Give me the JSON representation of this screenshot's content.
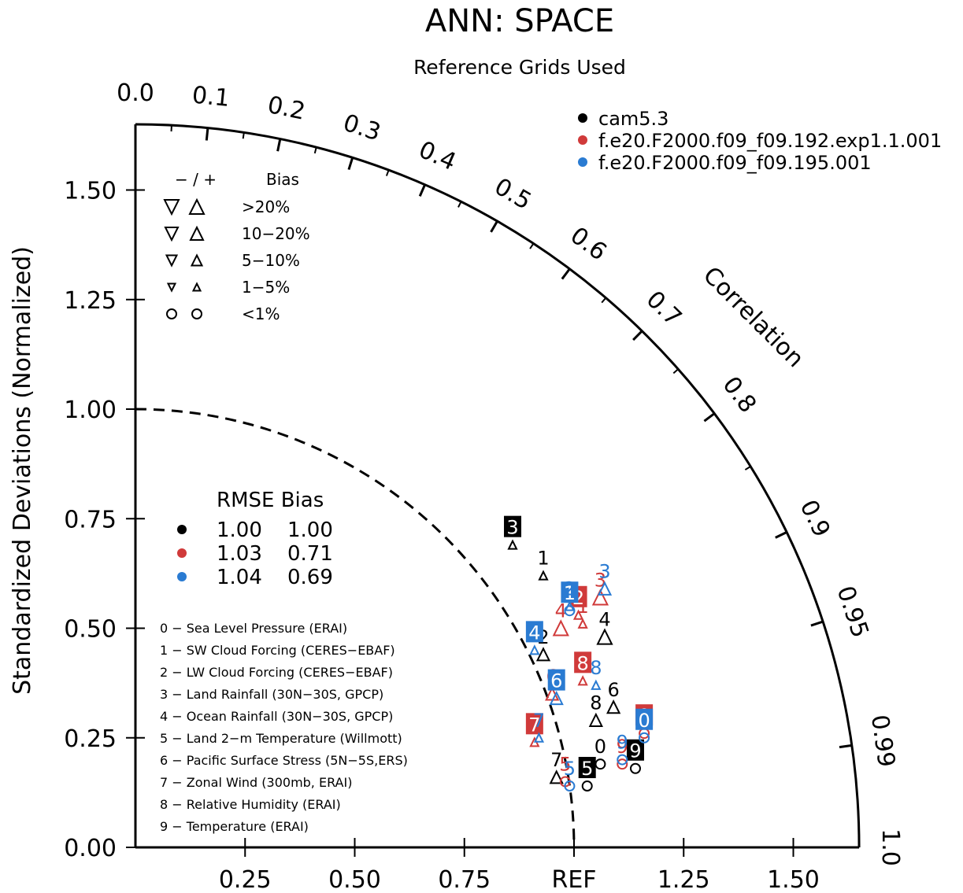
{
  "chart_data": {
    "type": "taylor",
    "title": "ANN: SPACE",
    "subtitle": "Reference Grids Used",
    "ylabel": "Standardized Deviations (Normalized)",
    "correlation_label": "Correlation",
    "reference_label": "REF",
    "x_ticks": [
      "0.25",
      "0.50",
      "0.75",
      "1.25",
      "1.50"
    ],
    "y_ticks": [
      "0.00",
      "0.25",
      "0.50",
      "0.75",
      "1.00",
      "1.25",
      "1.50"
    ],
    "correlation_ticks": [
      "0.0",
      "0.1",
      "0.2",
      "0.3",
      "0.4",
      "0.5",
      "0.6",
      "0.7",
      "0.8",
      "0.9",
      "0.95",
      "0.99",
      "1.0"
    ],
    "stddev_max": 1.65,
    "reference_stddev": 1.0,
    "models": [
      {
        "name": "cam5.3",
        "color": "#000000"
      },
      {
        "name": "f.e20.F2000.f09_f09.192.exp1.1.001",
        "color": "#d03a3a"
      },
      {
        "name": "f.e20.F2000.f09_f09.195.001",
        "color": "#2a7bd2"
      }
    ],
    "bias_legend": {
      "header_sign": "− / +",
      "header_label": "Bias",
      "rows": [
        {
          "label": ">20%"
        },
        {
          "label": "10−20%"
        },
        {
          "label": "5−10%"
        },
        {
          "label": "1−5%"
        },
        {
          "label": "<1%"
        }
      ]
    },
    "rmse_table": {
      "header": "RMSE Bias",
      "rows": [
        {
          "rmse": "1.00",
          "bias": "1.00"
        },
        {
          "rmse": "1.03",
          "bias": "0.71"
        },
        {
          "rmse": "1.04",
          "bias": "0.69"
        }
      ]
    },
    "variables": [
      "0 − Sea Level Pressure (ERAI)",
      "1 − SW Cloud Forcing (CERES−EBAF)",
      "2 − LW Cloud Forcing (CERES−EBAF)",
      "3 − Land Rainfall (30N−30S, GPCP)",
      "4 − Ocean Rainfall (30N−30S, GPCP)",
      "5 − Land 2−m Temperature (Willmott)",
      "6 − Pacific Surface Stress (5N−5S,ERS)",
      "7 − Zonal Wind (300mb, ERAI)",
      "8 − Relative Humidity (ERAI)",
      "9 − Temperature (ERAI)"
    ],
    "points": [
      {
        "model": 0,
        "var": 0,
        "x": 1.06,
        "y": 0.19,
        "bias": "circle",
        "boxed": false
      },
      {
        "model": 0,
        "var": 1,
        "x": 0.93,
        "y": 0.62,
        "bias": "up-small",
        "boxed": false
      },
      {
        "model": 0,
        "var": 2,
        "x": 0.93,
        "y": 0.44,
        "bias": "up-mid",
        "boxed": false
      },
      {
        "model": 0,
        "var": 3,
        "x": 0.86,
        "y": 0.69,
        "bias": "up-small",
        "boxed": true
      },
      {
        "model": 0,
        "var": 4,
        "x": 1.07,
        "y": 0.48,
        "bias": "up-big",
        "boxed": false
      },
      {
        "model": 0,
        "var": 5,
        "x": 1.03,
        "y": 0.14,
        "bias": "circle",
        "boxed": true
      },
      {
        "model": 0,
        "var": 6,
        "x": 1.09,
        "y": 0.32,
        "bias": "up-mid",
        "boxed": false
      },
      {
        "model": 0,
        "var": 7,
        "x": 0.96,
        "y": 0.16,
        "bias": "up-mid",
        "boxed": false
      },
      {
        "model": 0,
        "var": 8,
        "x": 1.05,
        "y": 0.29,
        "bias": "up-mid",
        "boxed": false
      },
      {
        "model": 0,
        "var": 9,
        "x": 1.14,
        "y": 0.18,
        "bias": "circle",
        "boxed": true
      },
      {
        "model": 1,
        "var": 0,
        "x": 1.16,
        "y": 0.26,
        "bias": "circle",
        "boxed": true
      },
      {
        "model": 1,
        "var": 1,
        "x": 1.02,
        "y": 0.51,
        "bias": "up-small",
        "boxed": false
      },
      {
        "model": 1,
        "var": 2,
        "x": 1.01,
        "y": 0.53,
        "bias": "up-small",
        "boxed": true
      },
      {
        "model": 1,
        "var": 3,
        "x": 1.06,
        "y": 0.57,
        "bias": "up-big",
        "boxed": false
      },
      {
        "model": 1,
        "var": 4,
        "x": 0.97,
        "y": 0.5,
        "bias": "up-big",
        "boxed": false
      },
      {
        "model": 1,
        "var": 5,
        "x": 0.98,
        "y": 0.15,
        "bias": "circle",
        "boxed": false
      },
      {
        "model": 1,
        "var": 6,
        "x": 0.95,
        "y": 0.35,
        "bias": "up-mid",
        "boxed": false
      },
      {
        "model": 1,
        "var": 7,
        "x": 0.91,
        "y": 0.24,
        "bias": "up-small",
        "boxed": true
      },
      {
        "model": 1,
        "var": 8,
        "x": 1.02,
        "y": 0.38,
        "bias": "up-small",
        "boxed": true
      },
      {
        "model": 1,
        "var": 9,
        "x": 1.11,
        "y": 0.19,
        "bias": "circle",
        "boxed": false
      },
      {
        "model": 2,
        "var": 0,
        "x": 1.16,
        "y": 0.25,
        "bias": "circle",
        "boxed": true
      },
      {
        "model": 2,
        "var": 1,
        "x": 0.99,
        "y": 0.54,
        "bias": "circle",
        "boxed": true
      },
      {
        "model": 2,
        "var": 2,
        "x": 0.99,
        "y": 0.55,
        "bias": "up-small",
        "boxed": false
      },
      {
        "model": 2,
        "var": 3,
        "x": 1.07,
        "y": 0.59,
        "bias": "up-mid",
        "boxed": false
      },
      {
        "model": 2,
        "var": 4,
        "x": 0.91,
        "y": 0.45,
        "bias": "up-small",
        "boxed": true
      },
      {
        "model": 2,
        "var": 5,
        "x": 0.99,
        "y": 0.14,
        "bias": "circle",
        "boxed": false
      },
      {
        "model": 2,
        "var": 6,
        "x": 0.96,
        "y": 0.34,
        "bias": "up-mid",
        "boxed": true
      },
      {
        "model": 2,
        "var": 7,
        "x": 0.92,
        "y": 0.25,
        "bias": "up-small",
        "boxed": false
      },
      {
        "model": 2,
        "var": 8,
        "x": 1.05,
        "y": 0.37,
        "bias": "up-small",
        "boxed": false
      },
      {
        "model": 2,
        "var": 9,
        "x": 1.11,
        "y": 0.2,
        "bias": "circle",
        "boxed": false
      }
    ]
  }
}
